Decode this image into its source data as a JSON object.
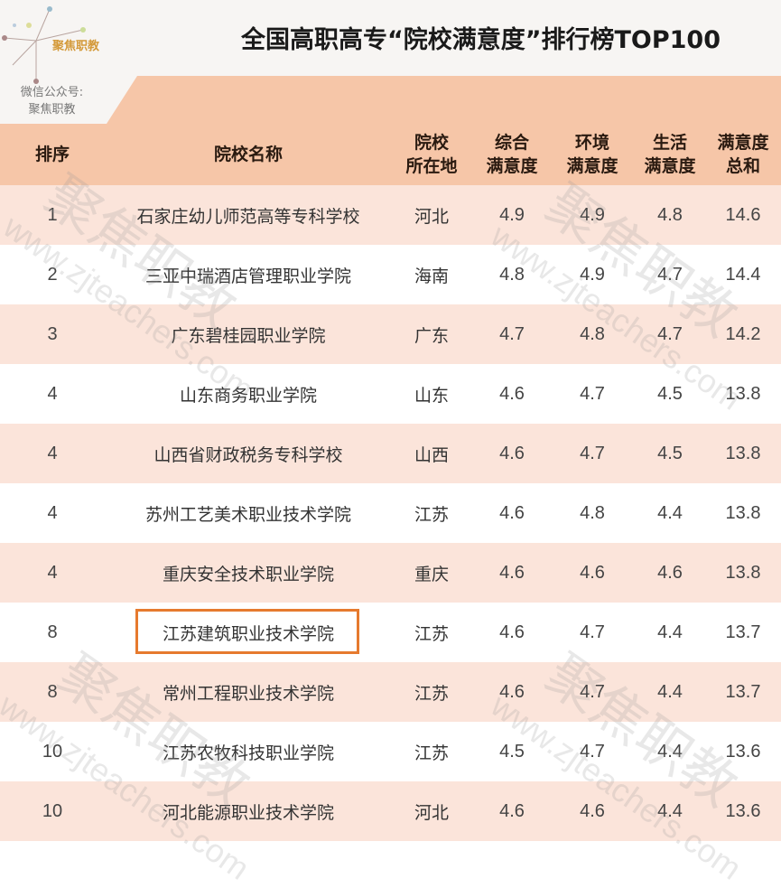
{
  "title": "全国高职高专“院校满意度”排行榜TOP100",
  "logo": {
    "brand": "聚焦职教",
    "wechat_label": "微信公众号:",
    "wechat_name": "聚焦职教"
  },
  "watermark": {
    "text": "聚焦职教",
    "url": "www.zjteachers.com"
  },
  "colors": {
    "header": "#f6c6a8",
    "row_alt": "#fbe4da",
    "highlight": "#e67a2e"
  },
  "columns": [
    "排序",
    "院校名称",
    "院校\n所在地",
    "综合\n满意度",
    "环境\n满意度",
    "生活\n满意度",
    "满意度\n总和"
  ],
  "rows": [
    [
      "1",
      "石家庄幼儿师范高等专科学校",
      "河北",
      "4.9",
      "4.9",
      "4.8",
      "14.6"
    ],
    [
      "2",
      "三亚中瑞酒店管理职业学院",
      "海南",
      "4.8",
      "4.9",
      "4.7",
      "14.4"
    ],
    [
      "3",
      "广东碧桂园职业学院",
      "广东",
      "4.7",
      "4.8",
      "4.7",
      "14.2"
    ],
    [
      "4",
      "山东商务职业学院",
      "山东",
      "4.6",
      "4.7",
      "4.5",
      "13.8"
    ],
    [
      "4",
      "山西省财政税务专科学校",
      "山西",
      "4.6",
      "4.7",
      "4.5",
      "13.8"
    ],
    [
      "4",
      "苏州工艺美术职业技术学院",
      "江苏",
      "4.6",
      "4.8",
      "4.4",
      "13.8"
    ],
    [
      "4",
      "重庆安全技术职业学院",
      "重庆",
      "4.6",
      "4.6",
      "4.6",
      "13.8"
    ],
    [
      "8",
      "江苏建筑职业技术学院",
      "江苏",
      "4.6",
      "4.7",
      "4.4",
      "13.7"
    ],
    [
      "8",
      "常州工程职业技术学院",
      "江苏",
      "4.6",
      "4.7",
      "4.4",
      "13.7"
    ],
    [
      "10",
      "江苏农牧科技职业学院",
      "江苏",
      "4.5",
      "4.7",
      "4.4",
      "13.6"
    ],
    [
      "10",
      "河北能源职业技术学院",
      "河北",
      "4.6",
      "4.6",
      "4.4",
      "13.6"
    ]
  ],
  "highlighted_row": 8
}
